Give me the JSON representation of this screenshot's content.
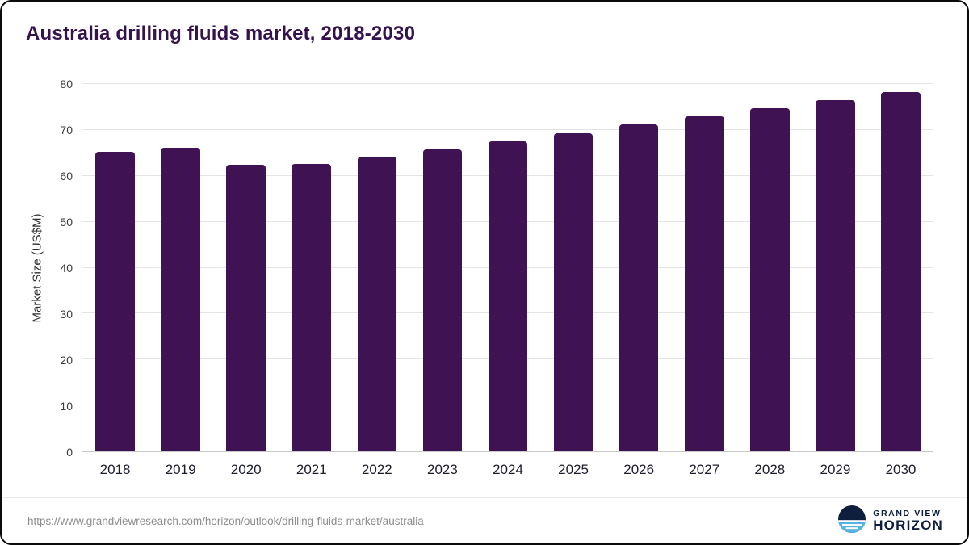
{
  "chart_data": {
    "type": "bar",
    "title": "Australia drilling fluids market, 2018-2030",
    "categories": [
      "2018",
      "2019",
      "2020",
      "2021",
      "2022",
      "2023",
      "2024",
      "2025",
      "2026",
      "2027",
      "2028",
      "2029",
      "2030"
    ],
    "values": [
      65.2,
      66.2,
      62.4,
      62.6,
      64.1,
      65.7,
      67.6,
      69.3,
      71.2,
      72.9,
      74.8,
      76.4,
      78.3
    ],
    "xlabel": "",
    "ylabel": "Market Size (US$M)",
    "ylim": [
      0,
      80
    ],
    "yticks": [
      0,
      10,
      20,
      30,
      40,
      50,
      60,
      70,
      80
    ],
    "grid": true,
    "legend_position": "none",
    "bar_color": "#3e1253",
    "grid_color": "#e4e4e4"
  },
  "footer": {
    "source_url": "https://www.grandviewresearch.com/horizon/outlook/drilling-fluids-market/australia",
    "brand_line1": "GRAND VIEW",
    "brand_line2": "HORIZON",
    "brand_navy": "#0e1f3d",
    "brand_blue": "#53b3e4"
  }
}
